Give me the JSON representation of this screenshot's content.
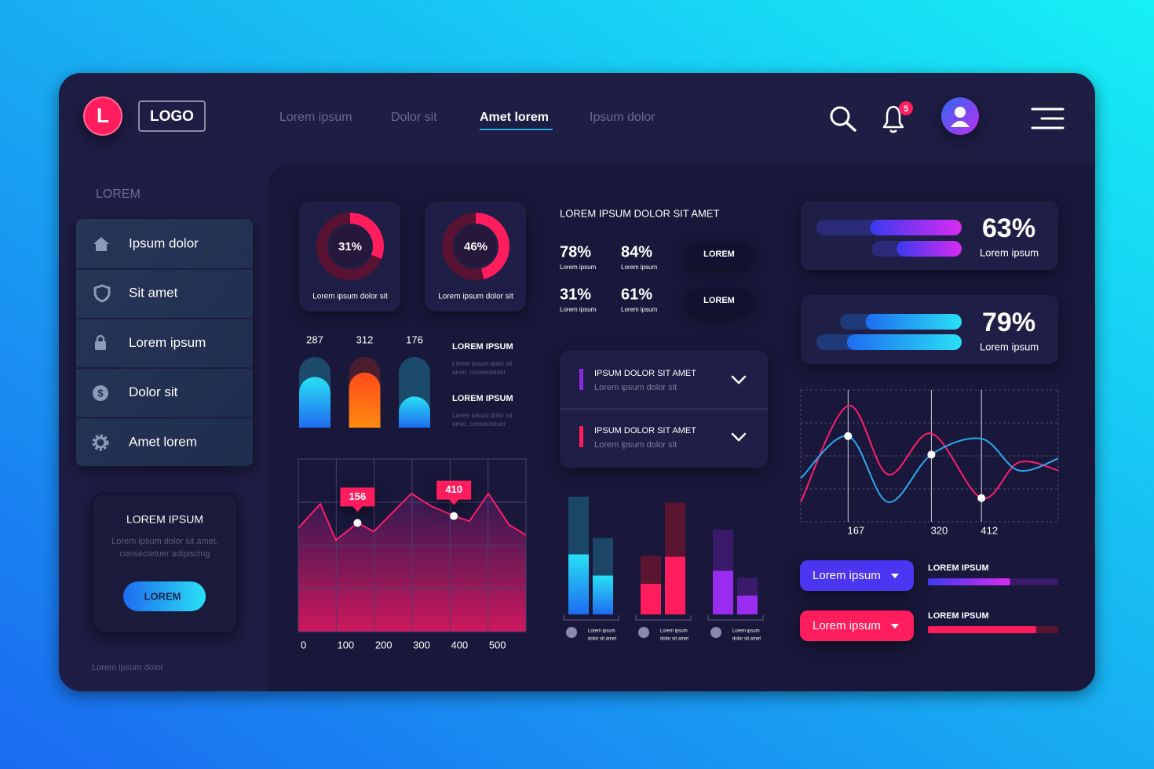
{
  "header": {
    "logo_letter": "L",
    "logo": "LOGO",
    "nav": [
      {
        "label": "Lorem ipsum"
      },
      {
        "label": "Dolor sit"
      },
      {
        "label": "Amet lorem",
        "active": true
      },
      {
        "label": "Ipsum dolor"
      }
    ],
    "notifications": 5
  },
  "sidebar": {
    "heading": "LOREM",
    "items": [
      "Ipsum dolor",
      "Sit amet",
      "Lorem ipsum",
      "Dolor sit",
      "Amet lorem"
    ],
    "card": {
      "title": "LOREM IPSUM",
      "text": [
        "Lorem ipsum dolor sit amet,",
        "consectetuer adipiscing"
      ],
      "button": "LOREM"
    },
    "footer": "Lorem ipsum dolor"
  },
  "donuts": [
    {
      "value": 31,
      "value_label": "31%",
      "caption": "Lorem ipsum dolor sit"
    },
    {
      "value": 46,
      "value_label": "46%",
      "caption": "Lorem ipsum dolor sit"
    }
  ],
  "capsules": {
    "type": "bar",
    "values": [
      287,
      312,
      176
    ],
    "ylim": [
      0,
      400
    ],
    "colors": [
      "#1ec8f5",
      "#ff7a1a",
      "#1ec8f5"
    ]
  },
  "notes": [
    {
      "title": "LOREM IPSUM",
      "text": [
        "Lorem ipsum dolor sit",
        "amet, consectetuer"
      ]
    },
    {
      "title": "LOREM IPSUM",
      "text": [
        "Lorem ipsum dolor sit",
        "amet, consectetuer"
      ]
    }
  ],
  "area_chart": {
    "type": "line",
    "color": "#ff1d6e",
    "x": [
      0,
      58,
      99,
      156,
      199,
      298,
      348,
      410,
      451,
      501,
      555,
      600
    ],
    "values": [
      60,
      74,
      53,
      63,
      58,
      80,
      73,
      67,
      64,
      80,
      62,
      56
    ],
    "xlim": [
      0,
      600
    ],
    "ylim": [
      0,
      100
    ],
    "xticks": [
      0,
      100,
      200,
      300,
      400,
      500
    ],
    "yticks": [
      0,
      25,
      50,
      75,
      100
    ],
    "grid": true,
    "annotations": [
      {
        "x": 156,
        "y": 63
      },
      {
        "x": 410,
        "y": 67
      }
    ]
  },
  "stats": {
    "title": "LOREM IPSUM DOLOR SIT AMET",
    "items": [
      {
        "value": 78,
        "value_label": "78%",
        "caption": "Lorem ipsum"
      },
      {
        "value": 84,
        "value_label": "84%",
        "caption": "Lorem ipsum"
      },
      {
        "value": 31,
        "value_label": "31%",
        "caption": "Lorem ipsum"
      },
      {
        "value": 61,
        "value_label": "61%",
        "caption": "Lorem ipsum"
      }
    ],
    "buttons": [
      "LOREM",
      "LOREM"
    ]
  },
  "accordion": [
    {
      "title": "IPSUM DOLOR  SIT AMET",
      "subtitle": "Lorem ipsum dolor sit",
      "color": "#8a2be2"
    },
    {
      "title": "IPSUM DOLOR  SIT AMET",
      "subtitle": "Lorem ipsum dolor sit",
      "color": "#ff1d5e"
    }
  ],
  "group_bars": {
    "type": "bar",
    "ylim": [
      0,
      100
    ],
    "groups": [
      {
        "totals": [
          100,
          65
        ],
        "values": [
          51,
          33
        ],
        "caption": [
          "Lorem ipsum",
          "dolor sit amet"
        ],
        "track": "#1b4666",
        "color": "#1ec8f5"
      },
      {
        "totals": [
          50,
          95
        ],
        "values": [
          26,
          49
        ],
        "caption": [
          "Lorem ipsum",
          "dolor sit amet"
        ],
        "track": "#5a1530",
        "color": "#ff1d5e"
      },
      {
        "totals": [
          72,
          31
        ],
        "values": [
          37,
          16
        ],
        "caption": [
          "Lorem ipsum",
          "dolor sit amet"
        ],
        "track": "#3a1a6a",
        "color": "#9a2cf0"
      }
    ]
  },
  "progress_cards": [
    {
      "value": 63,
      "value_label": "63%",
      "caption": "Lorem ipsum"
    },
    {
      "value": 79,
      "value_label": "79%",
      "caption": "Lorem ipsum"
    }
  ],
  "wave_chart": {
    "type": "line",
    "x": [
      80,
      167,
      240,
      320,
      412,
      480,
      553
    ],
    "series": [
      {
        "color": "#ff1d6e",
        "values": [
          15,
          88,
          36,
          67,
          18,
          45,
          39
        ]
      },
      {
        "color": "#29a9f0",
        "values": [
          33,
          65,
          15,
          51,
          63,
          39,
          48
        ]
      }
    ],
    "xlim": [
      80,
      553
    ],
    "ylim": [
      0,
      100
    ],
    "xticks": [
      167,
      320,
      412
    ],
    "yticks": [
      0,
      25,
      50,
      75,
      100
    ],
    "grid": true
  },
  "dropdowns": [
    {
      "label": "Lorem ipsum",
      "color": "#4a35f0"
    },
    {
      "label": "Lorem ipsum",
      "color": "#ff1d5e"
    }
  ],
  "progress": [
    {
      "label": "LOREM IPSUM",
      "value": 63,
      "color": "#6a3af0"
    },
    {
      "label": "LOREM IPSUM",
      "value": 83,
      "color": "#ff1d5e"
    }
  ]
}
